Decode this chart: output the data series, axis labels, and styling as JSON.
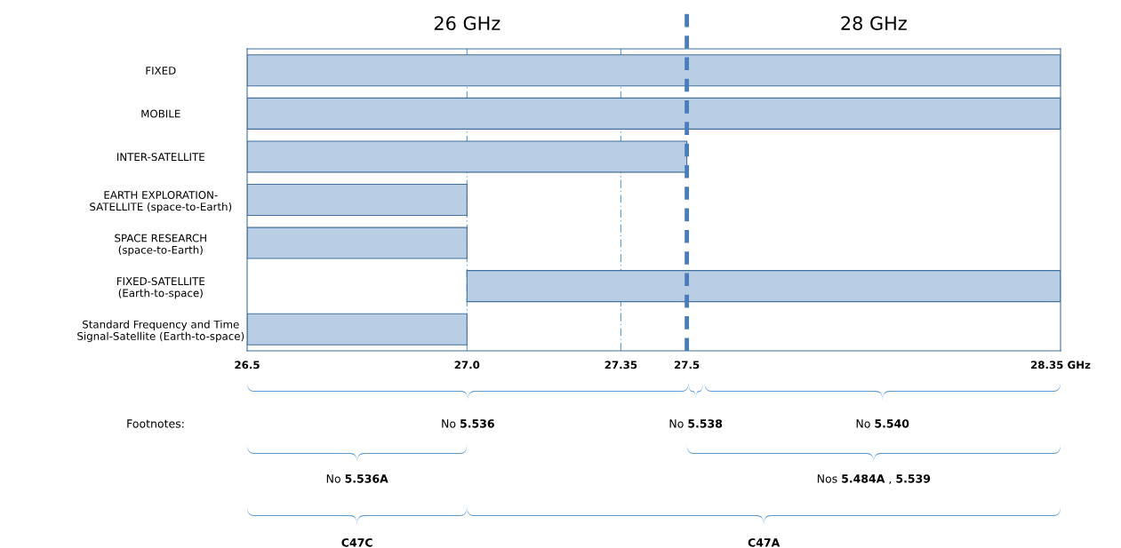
{
  "chart_data": {
    "type": "bar",
    "orientation": "horizontal",
    "categories": [
      "FIXED",
      "MOBILE",
      "INTER-SATELLITE",
      "EARTH EXPLORATION-\nSATELLITE (space-to-Earth)",
      "SPACE RESEARCH\n(space-to-Earth)",
      "FIXED-SATELLITE\n(Earth-to-space)",
      "Standard Frequency and Time\nSignal-Satellite (Earth-to-space)"
    ],
    "base": [
      26.5,
      26.5,
      26.5,
      26.5,
      26.5,
      27.0,
      26.5
    ],
    "values": [
      1.85,
      1.85,
      1.0,
      0.5,
      0.5,
      1.35,
      0.5
    ],
    "color": "#b9cde5",
    "xlim": [
      26.5,
      28.35
    ],
    "xticks": [
      26.5,
      {
        "value": 27.0,
        "label": "27.0"
      },
      27.35,
      27.5,
      {
        "value": 28.35,
        "label": "28.35 GHz"
      }
    ],
    "ref_lines": [
      {
        "axis": "x",
        "value": 27.0,
        "line_style": "dotted",
        "color": "#5b9bd5"
      },
      {
        "axis": "x",
        "value": 27.35,
        "line_style": "dotted",
        "color": "#5b9bd5"
      },
      {
        "axis": "x",
        "value": 27.5,
        "line_style": "dashed",
        "color": "#4a7ebb"
      }
    ],
    "annotations": [
      "26 GHz",
      "28 GHz",
      "Footnotes:",
      "No 5.536",
      "No 5.538",
      "No 5.540",
      "No 5.536A",
      "Nos 5.484A , 5.539",
      "C47C",
      "C47A"
    ],
    "grid": false,
    "legend": false
  }
}
